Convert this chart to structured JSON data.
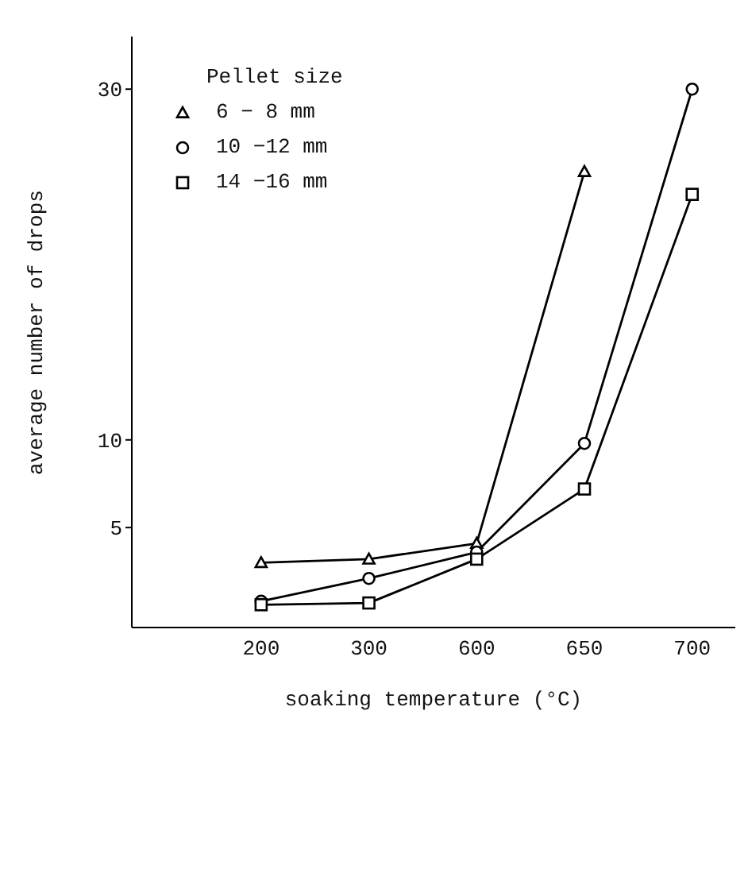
{
  "chart_data": {
    "type": "line",
    "xlabel": "soaking temperature (°C)",
    "ylabel": "average number of drops",
    "legend_title": "Pellet size",
    "categories": [
      "200",
      "300",
      "600",
      "650",
      "700"
    ],
    "ylim": [
      -0.7,
      33
    ],
    "yticks": [
      5,
      10,
      30
    ],
    "grid": false,
    "legend": "top left",
    "series": [
      {
        "name": "6 − 8 mm",
        "color": "#000000",
        "marker": "triangle",
        "values": [
          3.0,
          3.2,
          4.1,
          25.3,
          null
        ]
      },
      {
        "name": "10 −12 mm",
        "color": "#000000",
        "marker": "circle",
        "values": [
          0.8,
          2.1,
          3.6,
          9.8,
          30
        ]
      },
      {
        "name": "14 −16 mm",
        "color": "#000000",
        "marker": "square",
        "values": [
          0.6,
          0.7,
          3.2,
          7.2,
          24
        ]
      }
    ]
  }
}
